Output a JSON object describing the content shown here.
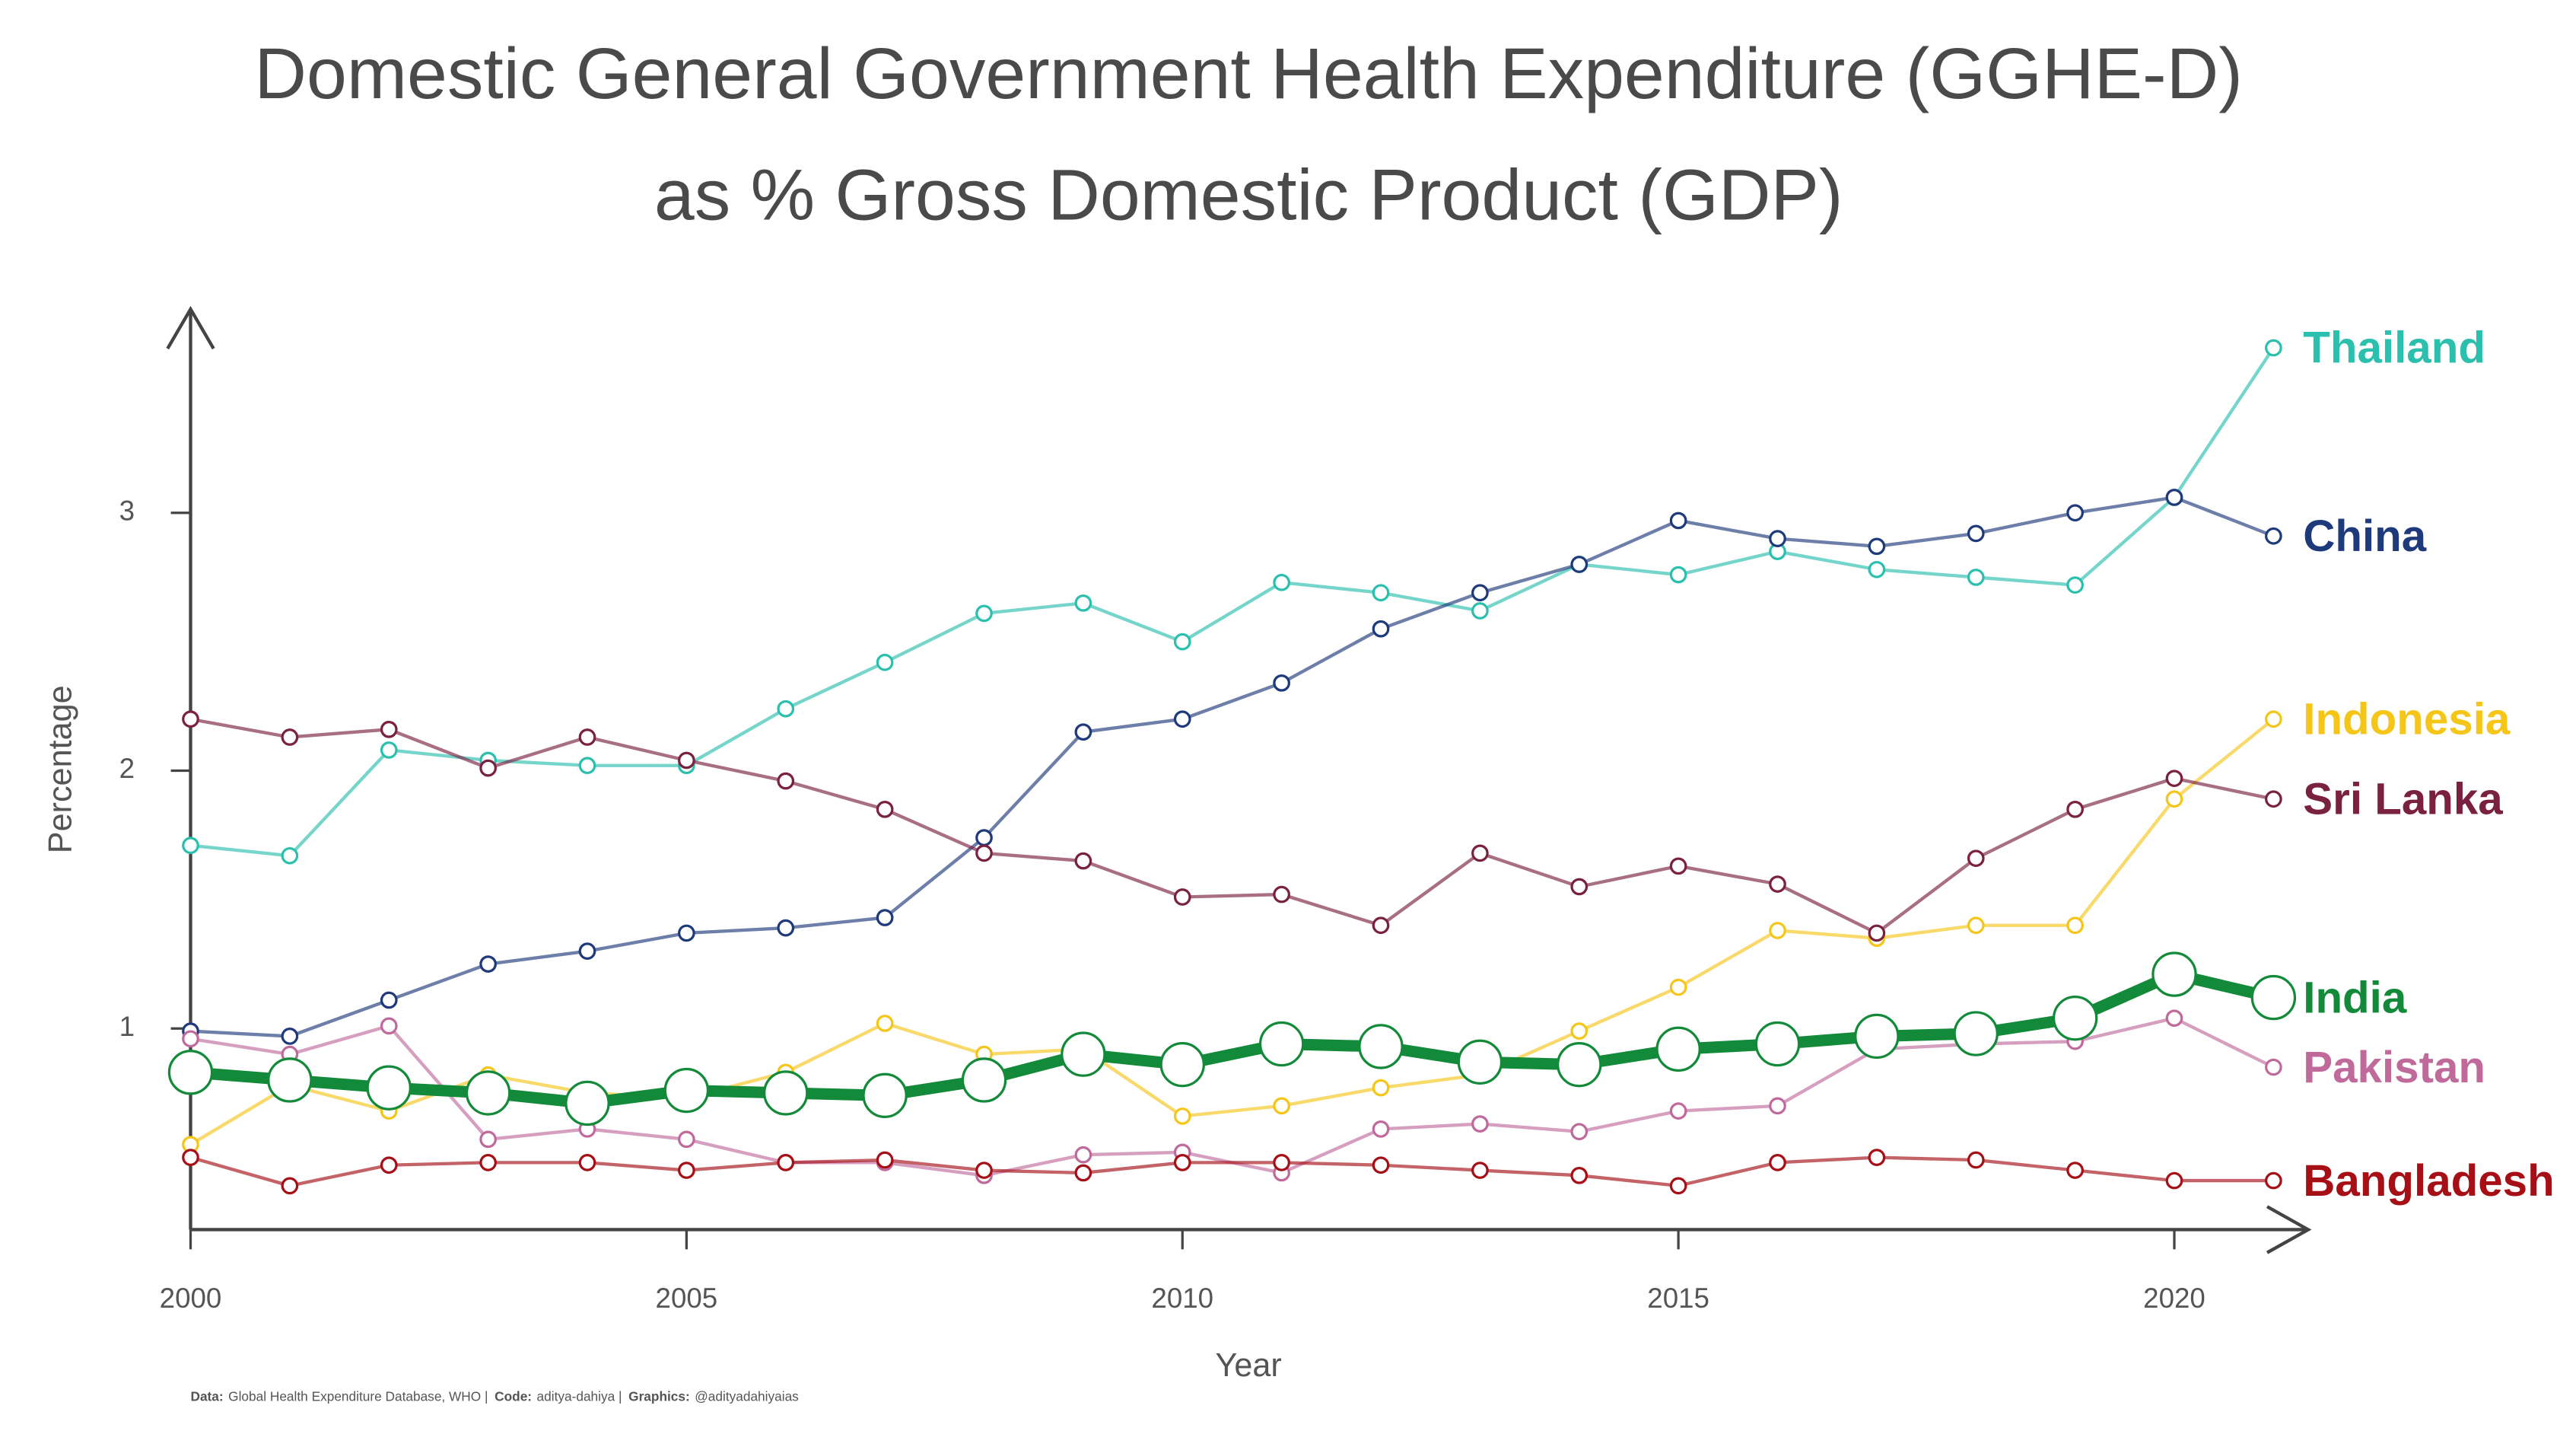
{
  "chart_data": {
    "type": "line",
    "title": [
      "Domestic General Government Health Expenditure (GGHE-D)",
      "as % Gross Domestic Product (GDP)"
    ],
    "x_label": "Year",
    "y_label": "Percentage",
    "x": [
      2000,
      2001,
      2002,
      2003,
      2004,
      2005,
      2006,
      2007,
      2008,
      2009,
      2010,
      2011,
      2012,
      2013,
      2014,
      2015,
      2016,
      2017,
      2018,
      2019,
      2020,
      2021
    ],
    "xlim": [
      2000,
      2021.35
    ],
    "xticks": [
      2000,
      2005,
      2010,
      2015,
      2020
    ],
    "ylim": [
      0.22,
      3.79
    ],
    "yticks": [
      1,
      2,
      3
    ],
    "grid": false,
    "highlight": "India",
    "series": [
      {
        "name": "Thailand",
        "color": "#2bbfae",
        "values": [
          1.71,
          1.67,
          2.08,
          2.04,
          2.02,
          2.02,
          2.24,
          2.42,
          2.61,
          2.65,
          2.5,
          2.73,
          2.69,
          2.62,
          2.8,
          2.76,
          2.85,
          2.78,
          2.75,
          2.72,
          3.06,
          3.64
        ]
      },
      {
        "name": "China",
        "color": "#1f3a7a",
        "values": [
          0.99,
          0.97,
          1.11,
          1.25,
          1.3,
          1.37,
          1.39,
          1.43,
          1.74,
          2.15,
          2.2,
          2.34,
          2.55,
          2.69,
          2.8,
          2.97,
          2.9,
          2.87,
          2.92,
          3.0,
          3.06,
          2.91
        ]
      },
      {
        "name": "Indonesia",
        "color": "#f5c518",
        "values": [
          0.55,
          0.78,
          0.68,
          0.82,
          0.75,
          0.73,
          0.83,
          1.02,
          0.9,
          0.92,
          0.66,
          0.7,
          0.77,
          0.82,
          0.99,
          1.16,
          1.38,
          1.35,
          1.4,
          1.4,
          1.89,
          2.2
        ]
      },
      {
        "name": "Sri Lanka",
        "color": "#7a2040",
        "values": [
          2.2,
          2.13,
          2.16,
          2.01,
          2.13,
          2.04,
          1.96,
          1.85,
          1.68,
          1.65,
          1.51,
          1.52,
          1.4,
          1.68,
          1.55,
          1.63,
          1.56,
          1.37,
          1.66,
          1.85,
          1.97,
          1.89
        ]
      },
      {
        "name": "Pakistan",
        "color": "#c06a9c",
        "values": [
          0.96,
          0.9,
          1.01,
          0.57,
          0.61,
          0.57,
          0.48,
          0.48,
          0.43,
          0.51,
          0.52,
          0.44,
          0.61,
          0.63,
          0.6,
          0.68,
          0.7,
          0.92,
          0.94,
          0.95,
          1.04,
          0.85
        ]
      },
      {
        "name": "Bangladesh",
        "color": "#a50f15",
        "values": [
          0.5,
          0.39,
          0.47,
          0.48,
          0.48,
          0.45,
          0.48,
          0.49,
          0.45,
          0.44,
          0.48,
          0.48,
          0.47,
          0.45,
          0.43,
          0.39,
          0.48,
          0.5,
          0.49,
          0.45,
          0.41,
          0.41
        ]
      },
      {
        "name": "India",
        "color": "#138a3a",
        "values": [
          0.83,
          0.8,
          0.77,
          0.75,
          0.71,
          0.76,
          0.75,
          0.74,
          0.8,
          0.9,
          0.86,
          0.94,
          0.93,
          0.87,
          0.86,
          0.92,
          0.94,
          0.97,
          0.98,
          1.04,
          1.21,
          1.12
        ]
      }
    ],
    "caption": [
      {
        "label": "Data:",
        "text": "Global Health Expenditure Database, WHO |"
      },
      {
        "label": "Code:",
        "text": "aditya-dahiya |"
      },
      {
        "label": "Graphics:",
        "text": "@adityadahiyaias"
      }
    ]
  }
}
